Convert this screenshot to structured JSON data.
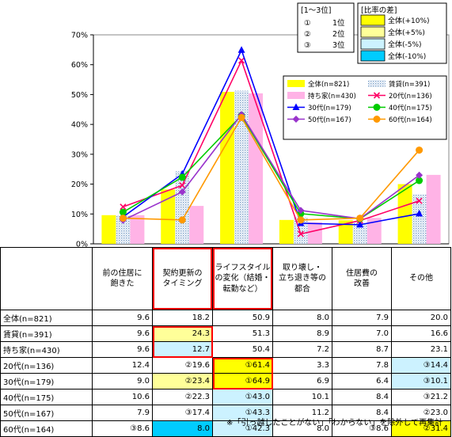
{
  "chart_data": {
    "type": "bar+line",
    "ylim": [
      0,
      70
    ],
    "yticks": [
      "0%",
      "10%",
      "20%",
      "30%",
      "40%",
      "50%",
      "60%",
      "70%"
    ],
    "categories": [
      "前の住居に飽きた",
      "契約更新のタイミング",
      "ライフスタイルの変化（結婚・転勤など）",
      "取り壊し・立ち退き等の都合",
      "住居費の改善",
      "その他"
    ],
    "bar_series": [
      {
        "name": "全体(n=821)",
        "color": "#ffff00",
        "pattern": "solid",
        "values": [
          9.6,
          18.2,
          50.9,
          8.0,
          7.9,
          20.0
        ]
      },
      {
        "name": "賃貸(n=391)",
        "color": "#c8dcf0",
        "pattern": "dots",
        "values": [
          9.6,
          24.3,
          51.3,
          8.9,
          7.0,
          16.6
        ]
      },
      {
        "name": "持ち家(n=430)",
        "color": "#ffb3e6",
        "pattern": "solid",
        "values": [
          9.6,
          12.7,
          50.4,
          7.2,
          8.7,
          23.1
        ]
      }
    ],
    "line_series": [
      {
        "name": "20代(n=136)",
        "color": "#ff0066",
        "marker": "x",
        "values": [
          12.4,
          19.6,
          61.4,
          3.3,
          7.8,
          14.4
        ]
      },
      {
        "name": "30代(n=179)",
        "color": "#0000ff",
        "marker": "triangle",
        "values": [
          9.0,
          23.4,
          64.9,
          6.9,
          6.4,
          10.1
        ]
      },
      {
        "name": "40代(n=175)",
        "color": "#00cc00",
        "marker": "circle",
        "values": [
          10.6,
          22.3,
          43.0,
          10.1,
          8.4,
          21.2
        ]
      },
      {
        "name": "50代(n=167)",
        "color": "#9933cc",
        "marker": "diamond",
        "values": [
          7.9,
          17.4,
          43.3,
          11.2,
          8.4,
          23.0
        ]
      },
      {
        "name": "60代(n=164)",
        "color": "#ff9900",
        "marker": "circle",
        "values": [
          8.6,
          8.0,
          42.3,
          8.0,
          8.6,
          31.4
        ]
      }
    ],
    "rank_legend": {
      "title": "[1～3位]",
      "items": [
        [
          "①",
          "1位"
        ],
        [
          "②",
          "2位"
        ],
        [
          "③",
          "3位"
        ]
      ]
    },
    "diff_legend": {
      "title": "[比率の差]",
      "items": [
        {
          "label": "全体(+10%)",
          "color": "#ffff00"
        },
        {
          "label": "全体(+5%)",
          "color": "#ffff99"
        },
        {
          "label": "全体(-5%)",
          "color": "#ccf2ff"
        },
        {
          "label": "全体(-10%)",
          "color": "#00ccff"
        }
      ]
    }
  },
  "table": {
    "headers": [
      "前の住居に飽きた",
      "契約更新のタイミング",
      "ライフスタイルの変化（結婚・転勤など）",
      "取り壊し・立ち退き等の都合",
      "住居費の改善",
      "その他"
    ],
    "header_lines": [
      [
        "前の住居に",
        "飽きた"
      ],
      [
        "契約更新の",
        "タイミング"
      ],
      [
        "ライフスタイル",
        "の変化（結婚・",
        "転勤など）"
      ],
      [
        "取り壊し・",
        "立ち退き等の",
        "都合"
      ],
      [
        "住居費の",
        "改善"
      ],
      [
        "その他"
      ]
    ],
    "rows": [
      {
        "label": "全体(n=821)",
        "cells": [
          "9.6",
          "18.2",
          "50.9",
          "8.0",
          "7.9",
          "20.0"
        ],
        "bg": [
          "",
          "",
          "",
          "",
          "",
          ""
        ]
      },
      {
        "label": "賃貸(n=391)",
        "cells": [
          "9.6",
          "24.3",
          "51.3",
          "8.9",
          "7.0",
          "16.6"
        ],
        "bg": [
          "",
          "#ffff99",
          "",
          "",
          "",
          ""
        ]
      },
      {
        "label": "持ち家(n=430)",
        "cells": [
          "9.6",
          "12.7",
          "50.4",
          "7.2",
          "8.7",
          "23.1"
        ],
        "bg": [
          "",
          "#ccf2ff",
          "",
          "",
          "",
          ""
        ]
      },
      {
        "label": "20代(n=136)",
        "cells": [
          "12.4",
          "②19.6",
          "①61.4",
          "3.3",
          "7.8",
          "③14.4"
        ],
        "bg": [
          "",
          "",
          "#ffff00",
          "",
          "",
          "#ccf2ff"
        ]
      },
      {
        "label": "30代(n=179)",
        "cells": [
          "9.0",
          "②23.4",
          "①64.9",
          "6.9",
          "6.4",
          "③10.1"
        ],
        "bg": [
          "",
          "#ffff99",
          "#ffff00",
          "",
          "",
          "#ccf2ff"
        ]
      },
      {
        "label": "40代(n=175)",
        "cells": [
          "10.6",
          "②22.3",
          "①43.0",
          "10.1",
          "8.4",
          "③21.2"
        ],
        "bg": [
          "",
          "",
          "#ccf2ff",
          "",
          "",
          ""
        ]
      },
      {
        "label": "50代(n=167)",
        "cells": [
          "7.9",
          "③17.4",
          "①43.3",
          "11.2",
          "8.4",
          "②23.0"
        ],
        "bg": [
          "",
          "",
          "#ccf2ff",
          "",
          "",
          ""
        ]
      },
      {
        "label": "60代(n=164)",
        "cells": [
          "③8.6",
          "8.0",
          "①42.3",
          "8.0",
          "③8.6",
          "②31.4"
        ],
        "bg": [
          "",
          "#00ccff",
          "#ccf2ff",
          "",
          "",
          "#ffff00"
        ]
      }
    ],
    "highlight_columns": [
      1,
      2
    ]
  },
  "footnote": "※「引っ越したことがない」「わからない」を除外して再集計"
}
